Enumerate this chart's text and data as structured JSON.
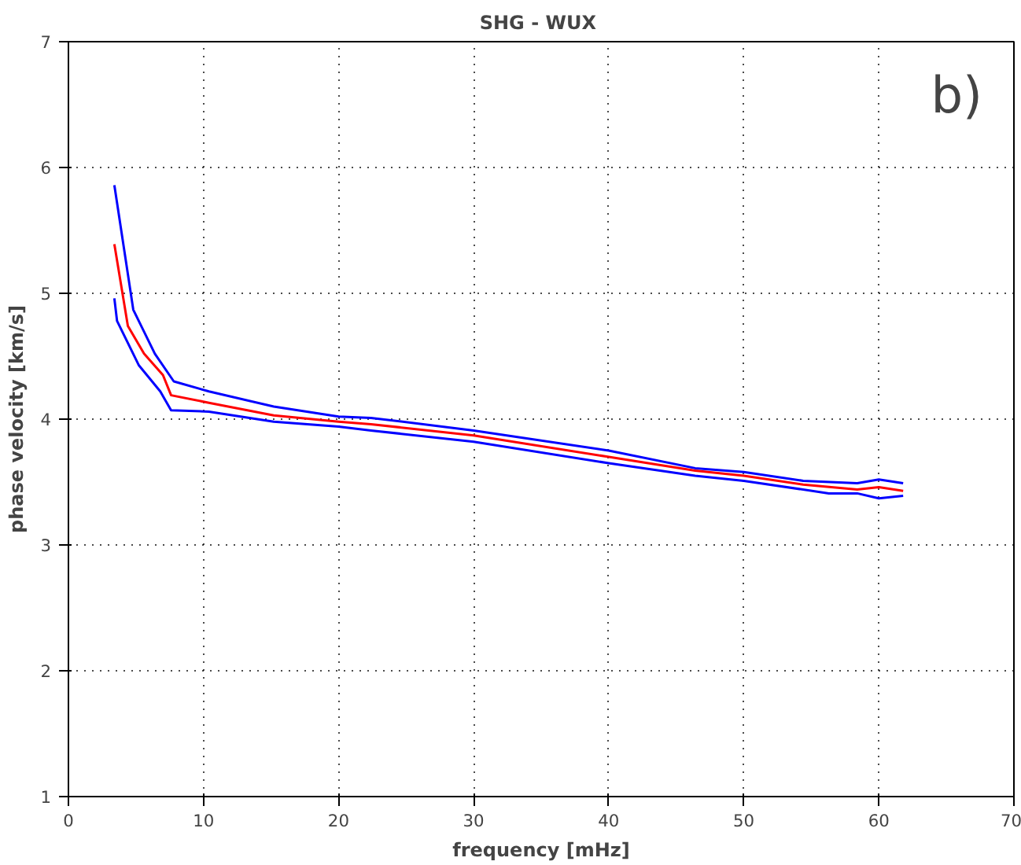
{
  "chart_data": {
    "type": "line",
    "title": "SHG  - WUX",
    "xlabel": "frequency [mHz]",
    "ylabel": "phase velocity [km/s]",
    "annotations": [
      "b)"
    ],
    "xlim": [
      0,
      70
    ],
    "xticks": [
      0,
      10,
      20,
      30,
      40,
      50,
      60,
      70
    ],
    "ylim": [
      1,
      7
    ],
    "yticks": [
      1,
      2,
      3,
      4,
      5,
      6,
      7
    ],
    "grid": true,
    "line_style": "solid",
    "series": [
      {
        "color": "#0000ff",
        "x": [
          3.4,
          4.8,
          6.4,
          7.8,
          10.4,
          15.2,
          20,
          22.4,
          30,
          40,
          46.4,
          50,
          54.4,
          58.4,
          60,
          61.8
        ],
        "values": [
          5.86,
          4.87,
          4.52,
          4.3,
          4.22,
          4.1,
          4.02,
          4.01,
          3.91,
          3.75,
          3.61,
          3.58,
          3.51,
          3.49,
          3.52,
          3.49
        ]
      },
      {
        "color": "#ff0000",
        "x": [
          3.4,
          4.4,
          5.6,
          7.0,
          7.6,
          10.4,
          15.2,
          20,
          22.4,
          30,
          40,
          46.4,
          50,
          54.4,
          58.4,
          60,
          61.8
        ],
        "values": [
          5.39,
          4.74,
          4.52,
          4.35,
          4.19,
          4.13,
          4.03,
          3.98,
          3.96,
          3.87,
          3.7,
          3.59,
          3.55,
          3.48,
          3.44,
          3.46,
          3.43
        ]
      },
      {
        "color": "#0000ff",
        "x": [
          3.4,
          3.6,
          5.2,
          6.8,
          7.6,
          10.4,
          15.2,
          20,
          22.4,
          30,
          40,
          46.4,
          50,
          56.3,
          58.4,
          60,
          61.8
        ],
        "values": [
          4.96,
          4.78,
          4.43,
          4.22,
          4.07,
          4.06,
          3.98,
          3.94,
          3.91,
          3.82,
          3.65,
          3.55,
          3.51,
          3.41,
          3.41,
          3.37,
          3.39
        ]
      }
    ]
  }
}
